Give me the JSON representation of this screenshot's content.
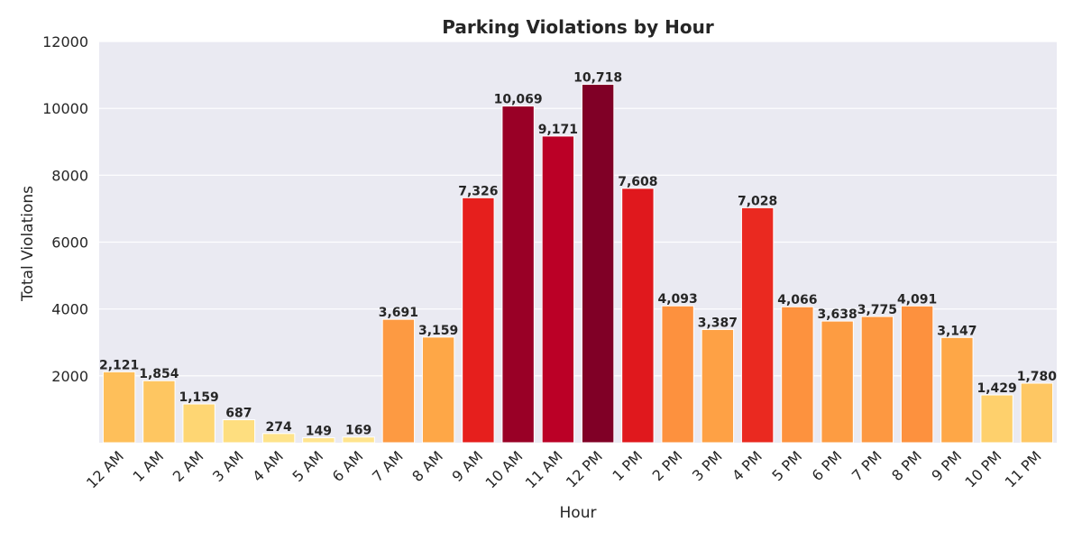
{
  "chart_data": {
    "type": "bar",
    "title": "Parking Violations by Hour",
    "xlabel": "Hour",
    "ylabel": "Total Violations",
    "categories": [
      "12 AM",
      "1 AM",
      "2 AM",
      "3 AM",
      "4 AM",
      "5 AM",
      "6 AM",
      "7 AM",
      "8 AM",
      "9 AM",
      "10 AM",
      "11 AM",
      "12 PM",
      "1 PM",
      "2 PM",
      "3 PM",
      "4 PM",
      "5 PM",
      "6 PM",
      "7 PM",
      "8 PM",
      "9 PM",
      "10 PM",
      "11 PM"
    ],
    "values": [
      2121,
      1854,
      1159,
      687,
      274,
      149,
      169,
      3691,
      3159,
      7326,
      10069,
      9171,
      10718,
      7608,
      4093,
      3387,
      7028,
      4066,
      3638,
      3775,
      4091,
      3147,
      1429,
      1780
    ],
    "value_labels": [
      "2,121",
      "1,854",
      "1,159",
      "687",
      "274",
      "149",
      "169",
      "3,691",
      "3,159",
      "7,326",
      "10,069",
      "9,171",
      "10,718",
      "7,608",
      "4,093",
      "3,387",
      "7,028",
      "4,066",
      "3,638",
      "3,775",
      "4,091",
      "3,147",
      "1,429",
      "1,780"
    ],
    "y_ticks": [
      2000,
      4000,
      6000,
      8000,
      10000,
      12000
    ],
    "y_tick_labels": [
      "2000",
      "4000",
      "6000",
      "8000",
      "10000",
      "12000"
    ],
    "ylim": [
      0,
      12000
    ],
    "grid": true,
    "colormap": "YlOrRd",
    "colors": {
      "background": "#eaeaf2",
      "grid": "#ffffff"
    }
  }
}
